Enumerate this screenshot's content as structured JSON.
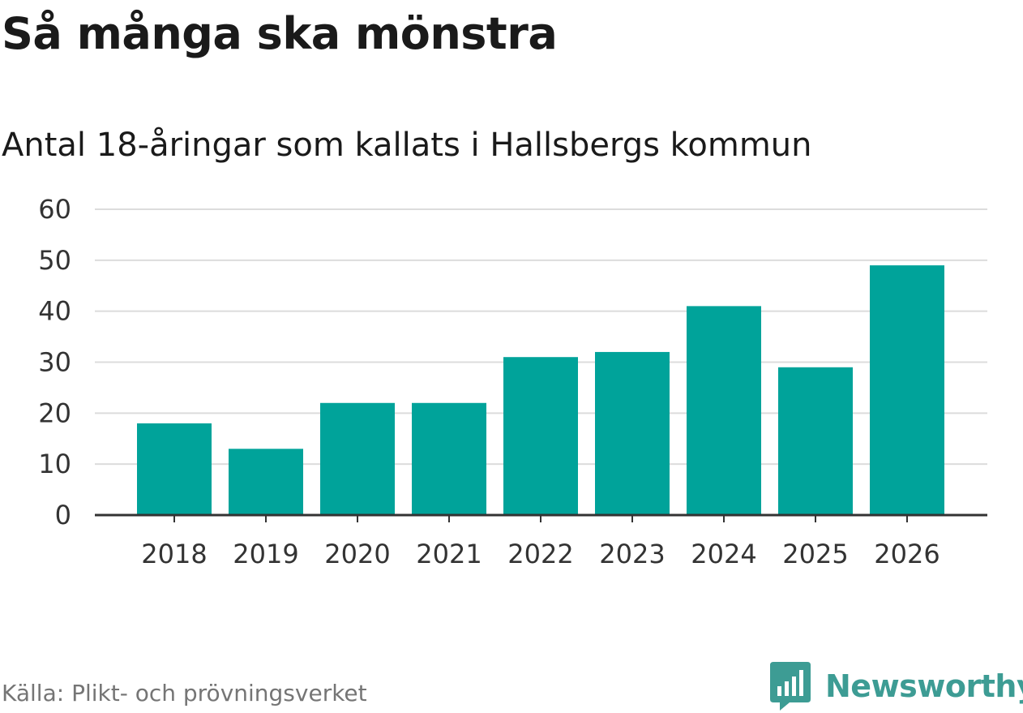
{
  "title": "Så många ska mönstra",
  "subtitle": "Antal 18-åringar som kallats i Hallsbergs kommun",
  "source": "Källa: Plikt- och prövningsverket",
  "brand": "Newsworthy",
  "colors": {
    "bar": "#00a39a",
    "grid": "#dcdcdc",
    "axis": "#333333",
    "brand": "#3d9c94"
  },
  "chart_data": {
    "type": "bar",
    "title": "Så många ska mönstra",
    "subtitle": "Antal 18-åringar som kallats i Hallsbergs kommun",
    "categories": [
      "2018",
      "2019",
      "2020",
      "2021",
      "2022",
      "2023",
      "2024",
      "2025",
      "2026"
    ],
    "values": [
      18,
      13,
      22,
      22,
      31,
      32,
      41,
      29,
      49
    ],
    "ylim": [
      0,
      60
    ],
    "yticks": [
      0,
      10,
      20,
      30,
      40,
      50,
      60
    ],
    "xlabel": "",
    "ylabel": "",
    "grid": true,
    "legend": "none"
  }
}
